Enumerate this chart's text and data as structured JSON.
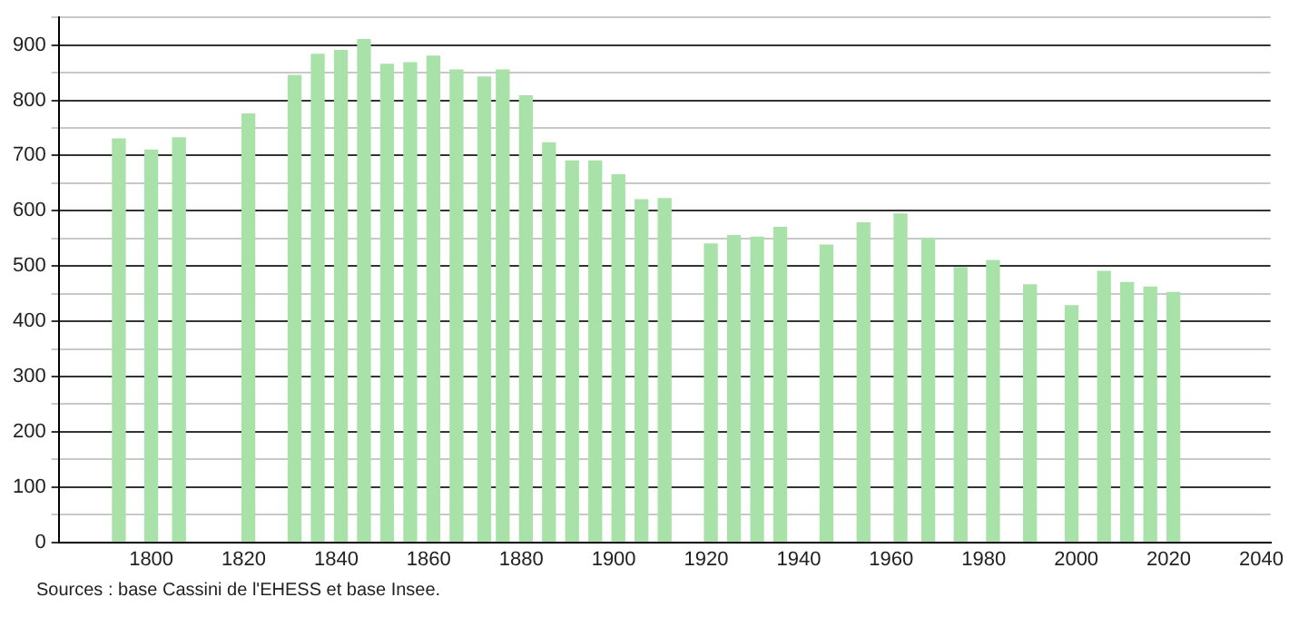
{
  "chart_data": {
    "type": "bar",
    "color": "#a8e2a8",
    "x": [
      1793,
      1800,
      1806,
      1821,
      1831,
      1836,
      1841,
      1846,
      1851,
      1856,
      1861,
      1866,
      1872,
      1876,
      1881,
      1886,
      1891,
      1896,
      1901,
      1906,
      1911,
      1921,
      1926,
      1931,
      1936,
      1946,
      1954,
      1962,
      1968,
      1975,
      1982,
      1990,
      1999,
      2006,
      2011,
      2016,
      2021
    ],
    "values": [
      730,
      710,
      732,
      775,
      845,
      883,
      890,
      910,
      865,
      868,
      880,
      855,
      842,
      855,
      808,
      723,
      690,
      690,
      665,
      620,
      622,
      540,
      555,
      552,
      570,
      538,
      578,
      594,
      550,
      497,
      510,
      466,
      428,
      490,
      470,
      462,
      452
    ],
    "xlim": [
      1780,
      2042
    ],
    "xticks": [
      1800,
      1820,
      1840,
      1860,
      1880,
      1900,
      1920,
      1940,
      1960,
      1980,
      2000,
      2020,
      2040
    ],
    "ylim": [
      0,
      950
    ],
    "yticks": [
      0,
      {
        "value": 50,
        "label": null
      },
      100,
      {
        "value": 150,
        "label": null
      },
      200,
      {
        "value": 250,
        "label": null
      },
      300,
      {
        "value": 350,
        "label": null
      },
      400,
      {
        "value": 450,
        "label": null
      },
      500,
      {
        "value": 550,
        "label": null
      },
      600,
      {
        "value": 650,
        "label": null
      },
      700,
      {
        "value": 750,
        "label": null
      },
      800,
      {
        "value": 850,
        "label": null
      },
      900,
      {
        "value": 950,
        "label": null
      }
    ],
    "grid": "y",
    "legend": false,
    "annotations": [
      "Sources : base Cassini de l'EHESS et base Insee."
    ]
  }
}
